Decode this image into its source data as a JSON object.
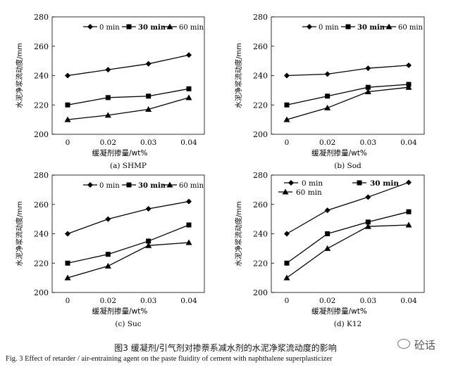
{
  "caption_zh": "图3  缓凝剂/引气剂对掺萘系减水剂的水泥净浆流动度的影响",
  "caption_en": "Fig. 3    Effect of retarder / air-entraining agent on the paste fluidity of cement with naphthalene superplasticizer",
  "watermark": "砼话",
  "chart_data": [
    {
      "type": "line",
      "subtitle": "(a) SHMP",
      "xlabel": "缓凝剂掺量/wt%",
      "ylabel": "水泥净浆流动度/mm",
      "categories": [
        "0",
        "0.02",
        "0.03",
        "0.04"
      ],
      "ylim": [
        200,
        280
      ],
      "yticks": [
        200,
        220,
        240,
        260,
        280
      ],
      "legend_position": "top-right",
      "series": [
        {
          "name": "0 min",
          "marker": "diamond",
          "values": [
            240,
            244,
            248,
            254
          ]
        },
        {
          "name": "30 min",
          "marker": "square",
          "values": [
            220,
            225,
            226,
            231
          ]
        },
        {
          "name": "60 min",
          "marker": "triangle",
          "values": [
            210,
            213,
            217,
            225
          ]
        }
      ]
    },
    {
      "type": "line",
      "subtitle": "(b) Sod",
      "xlabel": "缓凝剂掺量/wt%",
      "ylabel": "水泥净浆流动度/mm",
      "categories": [
        "0",
        "0.02",
        "0.03",
        "0.04"
      ],
      "ylim": [
        200,
        280
      ],
      "yticks": [
        200,
        220,
        240,
        260,
        280
      ],
      "legend_position": "top-right",
      "series": [
        {
          "name": "0 min",
          "marker": "diamond",
          "values": [
            240,
            241,
            245,
            247
          ]
        },
        {
          "name": "30 min",
          "marker": "square",
          "values": [
            220,
            226,
            232,
            234
          ]
        },
        {
          "name": "60 min",
          "marker": "triangle",
          "values": [
            210,
            218,
            229,
            232
          ]
        }
      ]
    },
    {
      "type": "line",
      "subtitle": "(c) Suc",
      "xlabel": "缓凝剂掺量/wt%",
      "ylabel": "水泥净浆流动度/mm",
      "categories": [
        "0",
        "0.02",
        "0.03",
        "0.04"
      ],
      "ylim": [
        200,
        280
      ],
      "yticks": [
        200,
        220,
        240,
        260,
        280
      ],
      "legend_position": "top-right",
      "series": [
        {
          "name": "0 min",
          "marker": "diamond",
          "values": [
            240,
            250,
            257,
            262
          ]
        },
        {
          "name": "30 min",
          "marker": "square",
          "values": [
            220,
            226,
            235,
            246
          ]
        },
        {
          "name": "60 min",
          "marker": "triangle",
          "values": [
            210,
            218,
            232,
            234
          ]
        }
      ]
    },
    {
      "type": "line",
      "subtitle": "(d) K12",
      "xlabel": "缓凝剂掺量/wt%",
      "ylabel": "水泥净浆流动度/mm",
      "categories": [
        "0",
        "0.02",
        "0.03",
        "0.04"
      ],
      "ylim": [
        200,
        280
      ],
      "yticks": [
        200,
        220,
        240,
        260,
        280
      ],
      "legend_position": "top-left",
      "series": [
        {
          "name": "0 min",
          "marker": "diamond",
          "values": [
            240,
            256,
            265,
            275
          ]
        },
        {
          "name": "30 min",
          "marker": "square",
          "values": [
            220,
            240,
            248,
            255
          ]
        },
        {
          "name": "60 min",
          "marker": "triangle",
          "values": [
            210,
            230,
            245,
            246
          ]
        }
      ]
    }
  ]
}
